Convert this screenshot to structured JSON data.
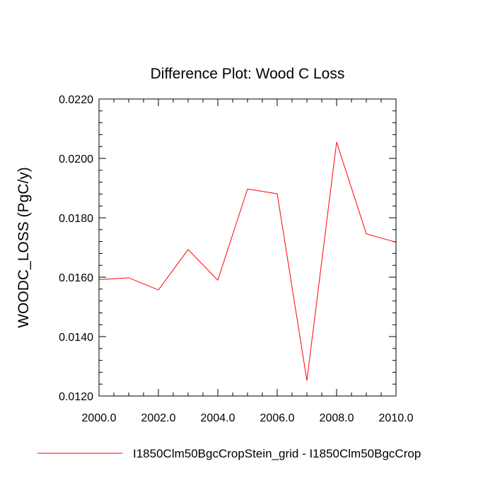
{
  "chart_data": {
    "type": "line",
    "title": "Difference Plot: Wood C Loss",
    "xlabel": "",
    "ylabel": "WOODC_LOSS  (PgC/y)",
    "xlim": [
      2000,
      2010
    ],
    "ylim": [
      0.012,
      0.022
    ],
    "x_ticks": [
      "2000.0",
      "2002.0",
      "2004.0",
      "2006.0",
      "2008.0",
      "2010.0"
    ],
    "y_ticks": [
      "0.0120",
      "0.0140",
      "0.0160",
      "0.0180",
      "0.0200",
      "0.0220"
    ],
    "grid": false,
    "legend": "bottom",
    "series": [
      {
        "name": "I1850Clm50BgcCropStein_grid - I1850Clm50BgcCrop",
        "color": "#ff0000",
        "x": [
          2000,
          2001,
          2002,
          2003,
          2004,
          2005,
          2006,
          2007,
          2008,
          2009,
          2010
        ],
        "values": [
          0.01592,
          0.01598,
          0.01557,
          0.01693,
          0.0159,
          0.01897,
          0.01881,
          0.01252,
          0.02055,
          0.01746,
          0.01718
        ]
      }
    ]
  }
}
